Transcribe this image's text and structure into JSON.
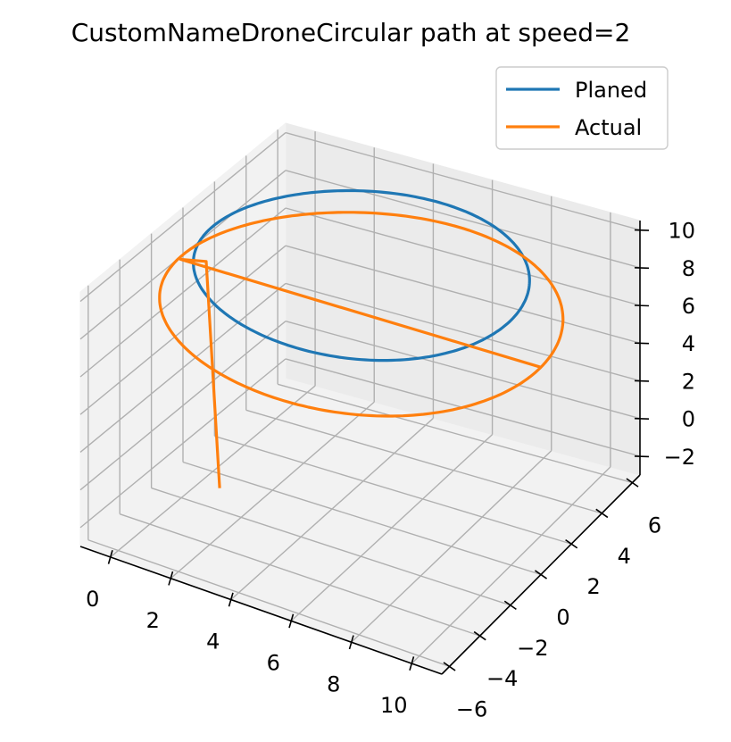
{
  "chart_data": {
    "type": "line",
    "projection": "3d",
    "title": "CustomNameDroneCircular path at speed=2",
    "xlabel": "",
    "ylabel": "",
    "zlabel": "",
    "xlim": [
      -1,
      11
    ],
    "ylim": [
      -6.5,
      6.5
    ],
    "zlim": [
      -3,
      10.5
    ],
    "xticks": [
      0,
      2,
      4,
      6,
      8,
      10
    ],
    "yticks": [
      -6,
      -4,
      -2,
      0,
      2,
      4,
      6
    ],
    "zticks": [
      -2,
      0,
      2,
      4,
      6,
      8,
      10
    ],
    "xtick_labels": [
      "0",
      "2",
      "4",
      "6",
      "8",
      "10"
    ],
    "ytick_labels": [
      "−6",
      "−4",
      "−2",
      "0",
      "2",
      "4",
      "6"
    ],
    "ztick_labels": [
      "−2",
      "0",
      "2",
      "4",
      "6",
      "8",
      "10"
    ],
    "grid": true,
    "legend_position": "top-right",
    "series": [
      {
        "name": "Planed",
        "color": "#1f77b4",
        "kind": "circle",
        "center": [
          5,
          0
        ],
        "radius": 5,
        "z": 10
      },
      {
        "name": "Actual",
        "color": "#ff7f0e",
        "kind": "ascent-then-circle",
        "start": [
          0.65,
          -0.8,
          -3
        ],
        "climb_top": [
          0.2,
          -0.8,
          8.8
        ],
        "center": [
          5,
          0
        ],
        "radius": 6,
        "z": 8
      }
    ]
  }
}
